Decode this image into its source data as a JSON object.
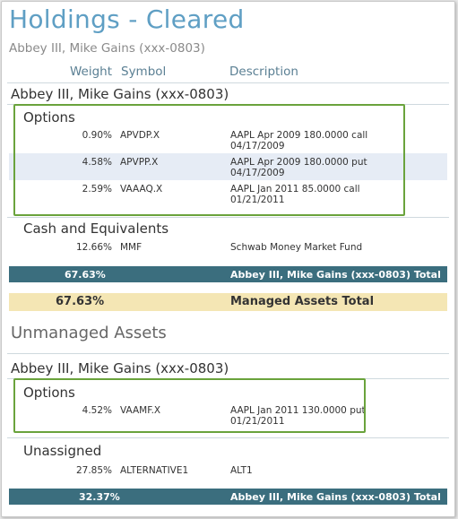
{
  "header": {
    "title": "Holdings - Cleared",
    "subtitle": "Abbey III, Mike Gains (xxx-0803)"
  },
  "columns": {
    "weight": "Weight",
    "symbol": "Symbol",
    "description": "Description"
  },
  "managed": {
    "account": "Abbey III, Mike Gains (xxx-0803)",
    "options_label": "Options",
    "options_rows": [
      {
        "weight": "0.90%",
        "symbol": "APVDP.X",
        "desc1": "AAPL Apr 2009 180.0000 call",
        "desc2": "04/17/2009"
      },
      {
        "weight": "4.58%",
        "symbol": "APVPP.X",
        "desc1": "AAPL Apr 2009 180.0000 put",
        "desc2": "04/17/2009"
      },
      {
        "weight": "2.59%",
        "symbol": "VAAAQ.X",
        "desc1": "AAPL Jan 2011 85.0000 call",
        "desc2": "01/21/2011"
      }
    ],
    "cash_label": "Cash and Equivalents",
    "cash_rows": [
      {
        "weight": "12.66%",
        "symbol": "MMF",
        "desc1": "Schwab Money Market Fund"
      }
    ],
    "account_total": {
      "weight": "67.63%",
      "label": "Abbey III, Mike Gains (xxx-0803) Total"
    },
    "managed_total": {
      "weight": "67.63%",
      "label": "Managed Assets Total"
    }
  },
  "unmanaged": {
    "section_title": "Unmanaged Assets",
    "account": "Abbey III, Mike Gains (xxx-0803)",
    "options_label": "Options",
    "options_rows": [
      {
        "weight": "4.52%",
        "symbol": "VAAMF.X",
        "desc1": "AAPL Jan 2011 130.0000 put",
        "desc2": "01/21/2011"
      }
    ],
    "unassigned_label": "Unassigned",
    "unassigned_rows": [
      {
        "weight": "27.85%",
        "symbol": "ALTERNATIVE1",
        "desc1": "ALT1"
      }
    ],
    "account_total": {
      "weight": "32.37%",
      "label": "Abbey III, Mike Gains (xxx-0803) Total"
    }
  },
  "colors": {
    "title": "#5f9fc4",
    "highlight": "#6aa33c",
    "total_bar": "#3b6e7e",
    "managed_total_bar": "#f4e6b4",
    "alt_row": "#e6ecf5"
  }
}
